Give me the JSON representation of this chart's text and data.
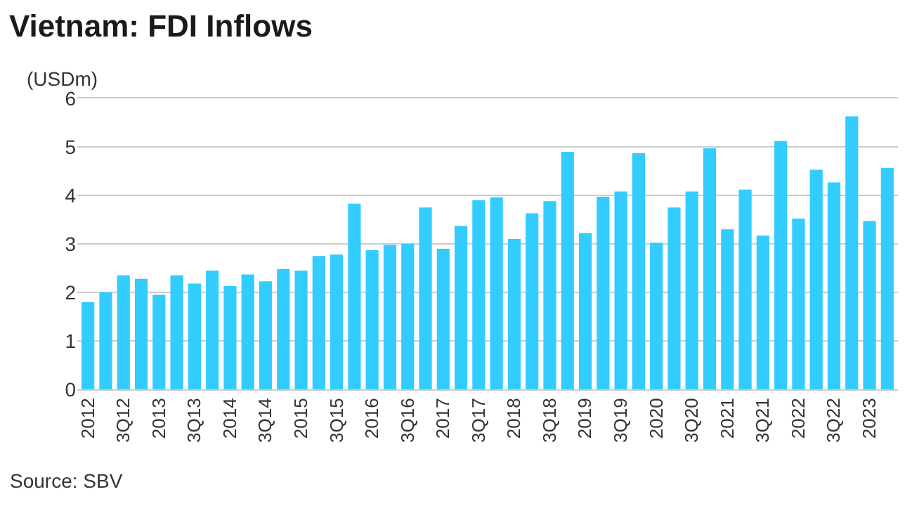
{
  "chart_data": {
    "type": "bar",
    "title": "Vietnam: FDI Inflows",
    "ylabel": "(USDm)",
    "categories": [
      "2012",
      null,
      "3Q12",
      null,
      "2013",
      null,
      "3Q13",
      null,
      "2014",
      null,
      "3Q14",
      null,
      "2015",
      null,
      "3Q15",
      null,
      "2016",
      null,
      "3Q16",
      null,
      "2017",
      null,
      "3Q17",
      null,
      "2018",
      null,
      "3Q18",
      null,
      "2019",
      null,
      "3Q19",
      null,
      "2020",
      null,
      "3Q20",
      null,
      "2021",
      null,
      "3Q21",
      null,
      "2022",
      null,
      "3Q22",
      null,
      "2023",
      null
    ],
    "values": [
      1.8,
      2.0,
      2.35,
      2.28,
      1.95,
      2.35,
      2.18,
      2.45,
      2.13,
      2.37,
      2.23,
      2.48,
      2.45,
      2.75,
      2.78,
      3.83,
      2.87,
      2.98,
      3.0,
      3.75,
      2.9,
      3.37,
      3.9,
      3.96,
      3.1,
      3.63,
      3.88,
      4.9,
      3.22,
      3.97,
      4.08,
      4.87,
      3.02,
      3.75,
      4.08,
      4.97,
      3.3,
      4.12,
      3.17,
      5.12,
      3.52,
      4.53,
      4.27,
      5.63,
      3.47,
      4.57
    ],
    "color": "#33ccff",
    "ylim": [
      0,
      6
    ],
    "yticks": [
      0,
      1,
      2,
      3,
      4,
      5,
      6
    ],
    "grid": "y",
    "annotations": [
      "Source: SBV"
    ]
  }
}
